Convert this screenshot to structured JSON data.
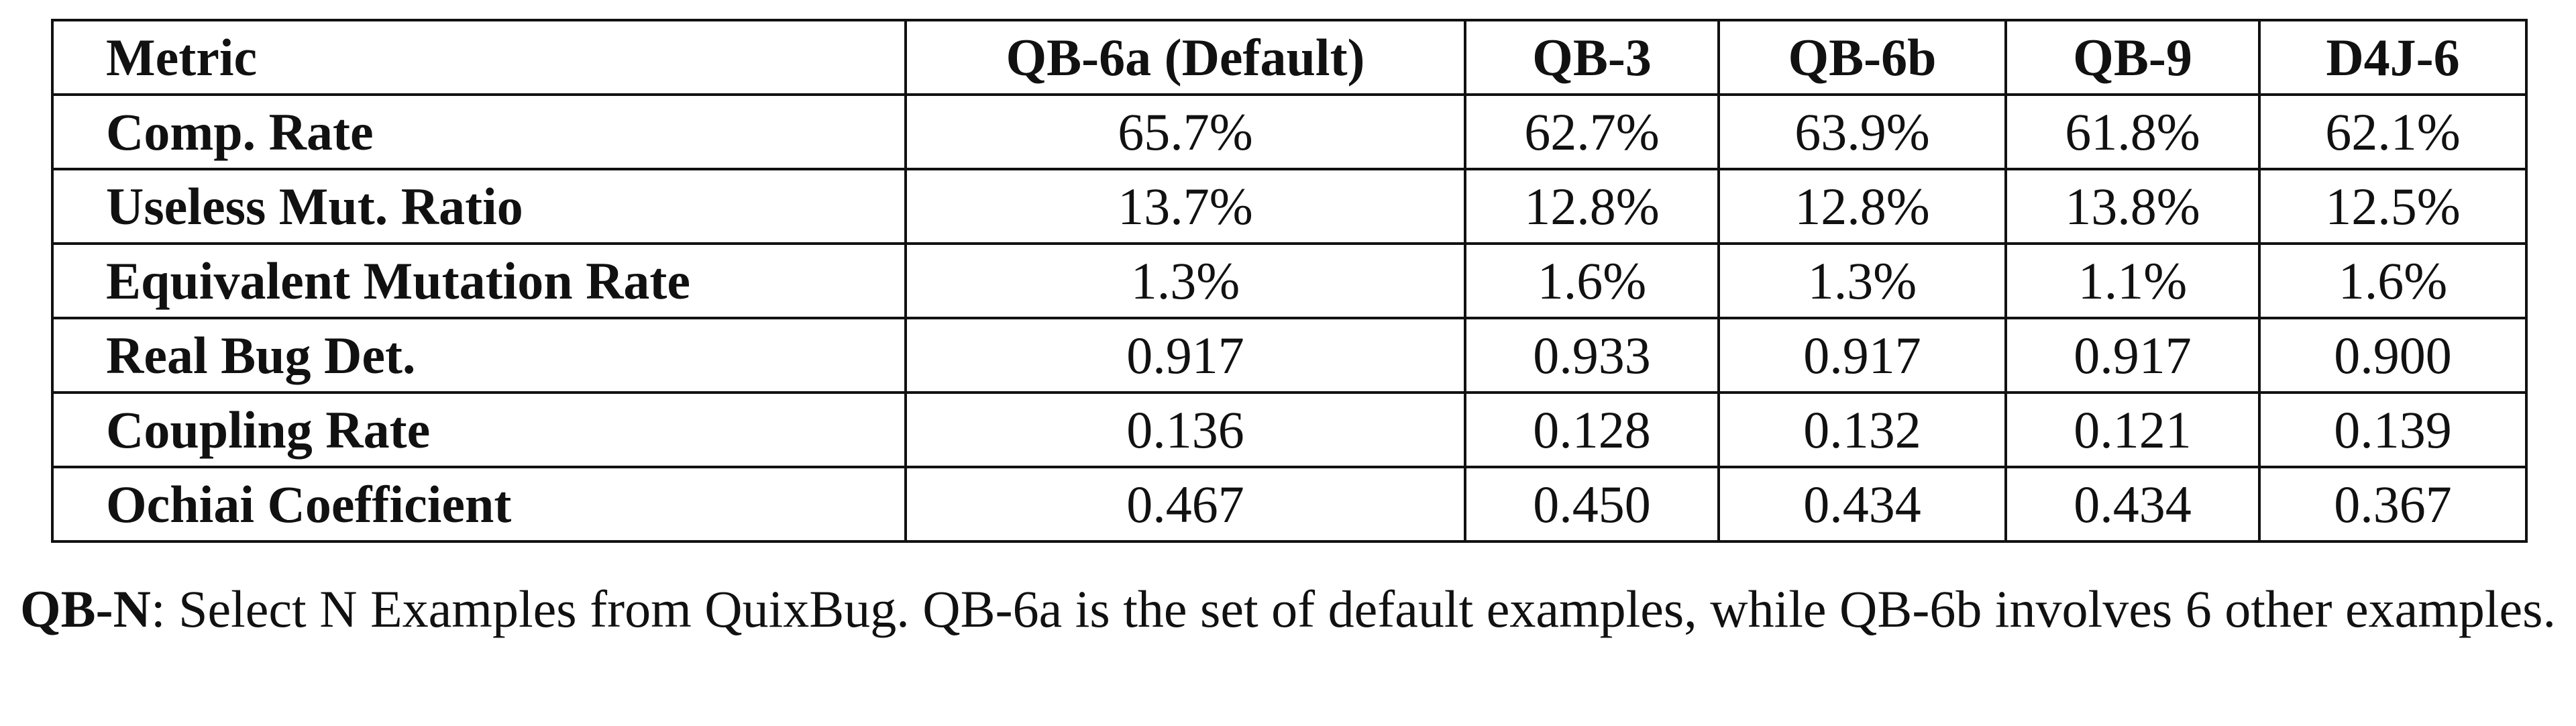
{
  "table": {
    "headers": [
      "Metric",
      "QB-6a (Default)",
      "QB-3",
      "QB-6b",
      "QB-9",
      "D4J-6"
    ],
    "rows": [
      {
        "metric": "Comp. Rate",
        "values": [
          "65.7%",
          "62.7%",
          "63.9%",
          "61.8%",
          "62.1%"
        ]
      },
      {
        "metric": "Useless Mut. Ratio",
        "values": [
          "13.7%",
          "12.8%",
          "12.8%",
          "13.8%",
          "12.5%"
        ]
      },
      {
        "metric": "Equivalent Mutation Rate",
        "values": [
          "1.3%",
          "1.6%",
          "1.3%",
          "1.1%",
          "1.6%"
        ]
      },
      {
        "metric": "Real Bug Det.",
        "values": [
          "0.917",
          "0.933",
          "0.917",
          "0.917",
          "0.900"
        ]
      },
      {
        "metric": "Coupling Rate",
        "values": [
          "0.136",
          "0.128",
          "0.132",
          "0.121",
          "0.139"
        ]
      },
      {
        "metric": "Ochiai Coefficient",
        "values": [
          "0.467",
          "0.450",
          "0.434",
          "0.434",
          "0.367"
        ]
      }
    ]
  },
  "caption": {
    "term": "QB-N",
    "text": ": Select N Examples from QuixBug. QB-6a is the set of default examples, while QB-6b involves 6 other examples."
  }
}
